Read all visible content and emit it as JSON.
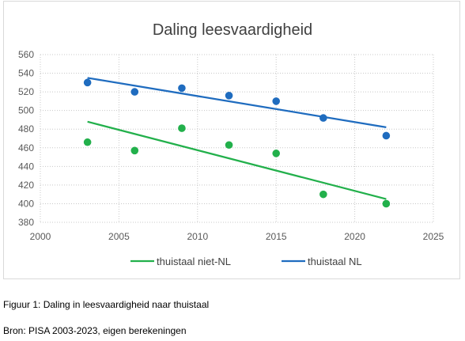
{
  "chart_data": {
    "type": "scatter",
    "title": "Daling leesvaardigheid",
    "xlabel": "",
    "ylabel": "",
    "xlim": [
      2000,
      2025
    ],
    "ylim": [
      380,
      560
    ],
    "x_ticks": [
      2000,
      2005,
      2010,
      2015,
      2020,
      2025
    ],
    "y_ticks": [
      380,
      400,
      420,
      440,
      460,
      480,
      500,
      520,
      540,
      560
    ],
    "grid": true,
    "legend_position": "bottom",
    "series": [
      {
        "name": "thuistaal niet-NL",
        "color": "#22b04b",
        "x": [
          2003,
          2006,
          2009,
          2012,
          2015,
          2018,
          2022
        ],
        "y": [
          466,
          457,
          481,
          463,
          454,
          410,
          400
        ],
        "trendline": {
          "x": [
            2003,
            2022
          ],
          "y": [
            488,
            405
          ]
        }
      },
      {
        "name": "thuistaal NL",
        "color": "#1f6cbf",
        "x": [
          2003,
          2006,
          2009,
          2012,
          2015,
          2018,
          2022
        ],
        "y": [
          530,
          520,
          524,
          516,
          510,
          492,
          473
        ],
        "trendline": {
          "x": [
            2003,
            2022
          ],
          "y": [
            535,
            482
          ]
        }
      }
    ]
  },
  "captions": {
    "figure": "Figuur 1: Daling in leesvaardigheid naar thuistaal",
    "source": "Bron: PISA 2003-2023, eigen berekeningen"
  }
}
